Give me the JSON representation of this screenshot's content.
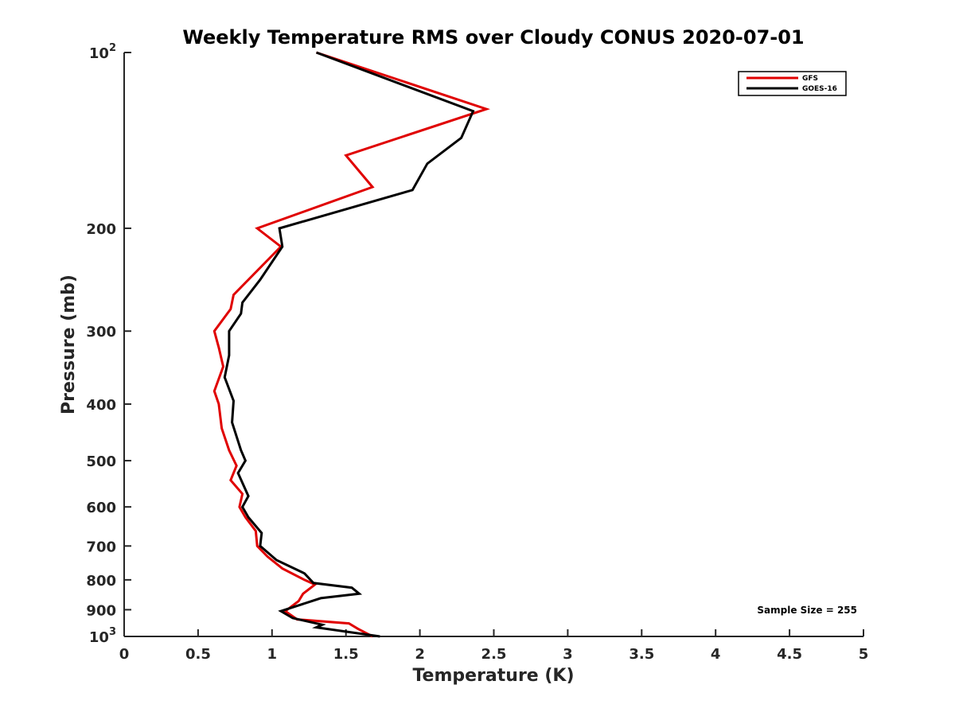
{
  "chart_data": {
    "type": "line",
    "title": "Weekly Temperature RMS over Cloudy CONUS 2020-07-01",
    "xlabel": "Temperature (K)",
    "ylabel": "Pressure (mb)",
    "xlim": [
      0,
      5
    ],
    "ylim": [
      100,
      1000
    ],
    "y_scale": "log",
    "y_reversed": true,
    "grid": false,
    "legend_position": "top-right",
    "x_ticks": [
      0,
      0.5,
      1,
      1.5,
      2,
      2.5,
      3,
      3.5,
      4,
      4.5,
      5
    ],
    "x_tick_labels": [
      "0",
      "0.5",
      "1",
      "1.5",
      "2",
      "2.5",
      "3",
      "3.5",
      "4",
      "4.5",
      "5"
    ],
    "y_ticks": [
      100,
      200,
      300,
      400,
      500,
      600,
      700,
      800,
      900,
      1000
    ],
    "y_tick_labels": [
      {
        "base": "10",
        "exp": "2"
      },
      {
        "base": "200",
        "exp": ""
      },
      {
        "base": "300",
        "exp": ""
      },
      {
        "base": "400",
        "exp": ""
      },
      {
        "base": "500",
        "exp": ""
      },
      {
        "base": "600",
        "exp": ""
      },
      {
        "base": "700",
        "exp": ""
      },
      {
        "base": "800",
        "exp": ""
      },
      {
        "base": "900",
        "exp": ""
      },
      {
        "base": "10",
        "exp": "3"
      }
    ],
    "annotation": "Sample Size = 255",
    "series": [
      {
        "name": "GFS",
        "color": "#e00000",
        "points": [
          [
            1.3,
            100
          ],
          [
            2.45,
            125
          ],
          [
            1.5,
            150
          ],
          [
            1.68,
            170
          ],
          [
            0.9,
            200
          ],
          [
            1.06,
            215
          ],
          [
            0.74,
            260
          ],
          [
            0.72,
            275
          ],
          [
            0.61,
            300
          ],
          [
            0.64,
            320
          ],
          [
            0.67,
            345
          ],
          [
            0.61,
            380
          ],
          [
            0.64,
            400
          ],
          [
            0.66,
            440
          ],
          [
            0.71,
            480
          ],
          [
            0.76,
            510
          ],
          [
            0.72,
            540
          ],
          [
            0.8,
            570
          ],
          [
            0.78,
            600
          ],
          [
            0.82,
            625
          ],
          [
            0.89,
            660
          ],
          [
            0.9,
            700
          ],
          [
            0.97,
            730
          ],
          [
            1.07,
            765
          ],
          [
            1.22,
            800
          ],
          [
            1.29,
            815
          ],
          [
            1.21,
            845
          ],
          [
            1.18,
            870
          ],
          [
            1.09,
            905
          ],
          [
            1.17,
            935
          ],
          [
            1.52,
            950
          ],
          [
            1.58,
            970
          ],
          [
            1.68,
            1000
          ]
        ]
      },
      {
        "name": "GOES-16",
        "color": "#000000",
        "points": [
          [
            1.3,
            100
          ],
          [
            2.36,
            126
          ],
          [
            2.28,
            140
          ],
          [
            2.05,
            155
          ],
          [
            1.95,
            172
          ],
          [
            1.05,
            200
          ],
          [
            1.07,
            215
          ],
          [
            0.92,
            245
          ],
          [
            0.8,
            268
          ],
          [
            0.79,
            280
          ],
          [
            0.71,
            300
          ],
          [
            0.71,
            330
          ],
          [
            0.68,
            360
          ],
          [
            0.74,
            395
          ],
          [
            0.73,
            430
          ],
          [
            0.79,
            480
          ],
          [
            0.82,
            500
          ],
          [
            0.77,
            525
          ],
          [
            0.84,
            575
          ],
          [
            0.8,
            600
          ],
          [
            0.84,
            625
          ],
          [
            0.93,
            665
          ],
          [
            0.92,
            700
          ],
          [
            1.03,
            740
          ],
          [
            1.22,
            780
          ],
          [
            1.28,
            810
          ],
          [
            1.54,
            825
          ],
          [
            1.59,
            845
          ],
          [
            1.33,
            860
          ],
          [
            1.06,
            905
          ],
          [
            1.14,
            930
          ],
          [
            1.34,
            955
          ],
          [
            1.3,
            965
          ],
          [
            1.73,
            1000
          ]
        ]
      }
    ]
  }
}
